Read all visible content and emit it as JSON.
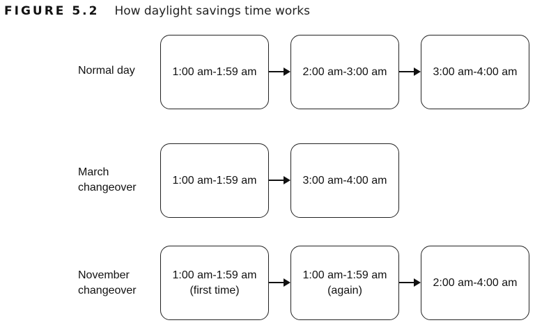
{
  "figure": {
    "label": "FIGURE 5.2",
    "title": "How daylight savings time works"
  },
  "rows": [
    {
      "label_lines": [
        "Normal day"
      ],
      "boxes": [
        {
          "lines": [
            "1:00 am-1:59 am"
          ]
        },
        {
          "lines": [
            "2:00 am-3:00 am"
          ]
        },
        {
          "lines": [
            "3:00 am-4:00 am"
          ]
        }
      ]
    },
    {
      "label_lines": [
        "March",
        "changeover"
      ],
      "boxes": [
        {
          "lines": [
            "1:00 am-1:59 am"
          ]
        },
        {
          "lines": [
            "3:00 am-4:00 am"
          ]
        }
      ]
    },
    {
      "label_lines": [
        "November",
        "changeover"
      ],
      "boxes": [
        {
          "lines": [
            "1:00 am-1:59 am",
            "(first time)"
          ]
        },
        {
          "lines": [
            "1:00 am-1:59 am",
            "(again)"
          ]
        },
        {
          "lines": [
            "2:00 am-4:00 am"
          ]
        }
      ]
    }
  ]
}
